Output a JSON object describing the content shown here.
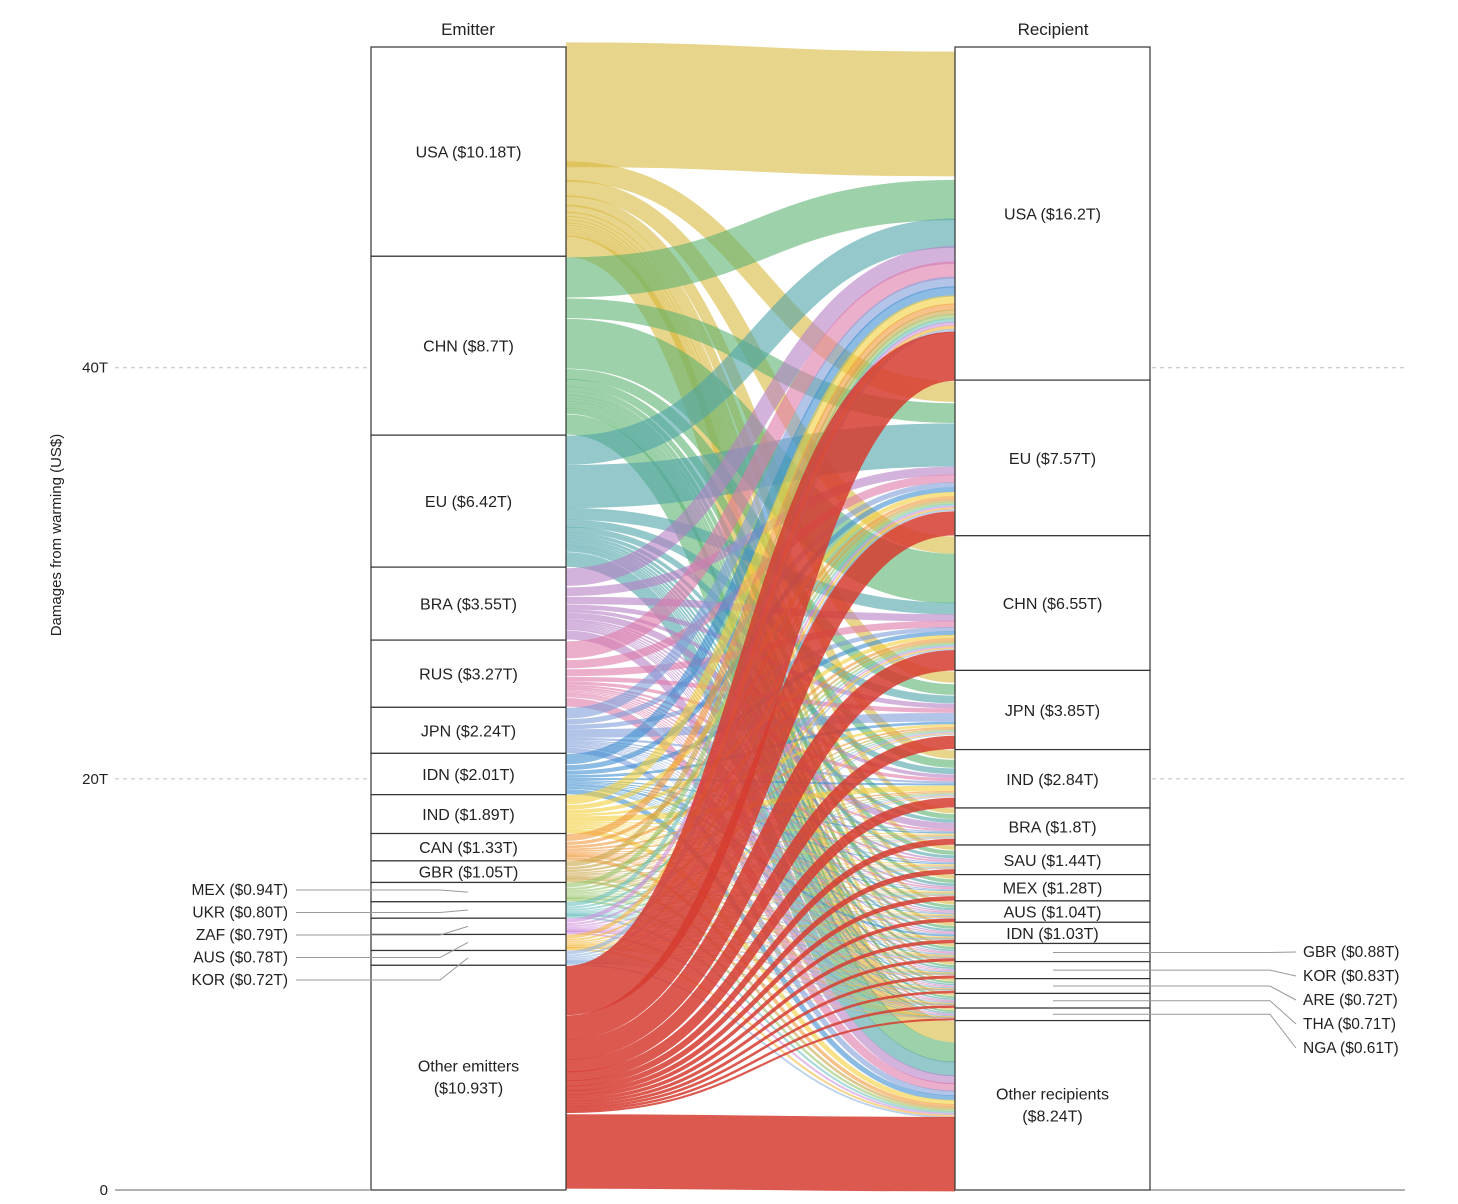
{
  "chart_data": {
    "type": "sankey",
    "title": "",
    "ylabel": "Damages from warming (US$)",
    "ylim": [
      0,
      56
    ],
    "yticks": [
      0,
      20,
      40
    ],
    "ytick_labels": [
      "0",
      "20T",
      "40T"
    ],
    "gridlines": "dashed at 20T and 40T",
    "columns": {
      "left": "Emitter",
      "right": "Recipient"
    },
    "emitters": [
      {
        "code": "USA",
        "value": 10.18,
        "label": "USA ($10.18T)",
        "color": "#d9b940"
      },
      {
        "code": "CHN",
        "value": 8.7,
        "label": "CHN ($8.7T)",
        "color": "#5cb370"
      },
      {
        "code": "EU",
        "value": 6.42,
        "label": "EU ($6.42T)",
        "color": "#4fa3a8"
      },
      {
        "code": "BRA",
        "value": 3.55,
        "label": "BRA ($3.55T)",
        "color": "#b67fc4"
      },
      {
        "code": "RUS",
        "value": 3.27,
        "label": "RUS ($3.27T)",
        "color": "#e07aa8"
      },
      {
        "code": "JPN",
        "value": 2.24,
        "label": "JPN ($2.24T)",
        "color": "#7f9ed8"
      },
      {
        "code": "IDN",
        "value": 2.01,
        "label": "IDN ($2.01T)",
        "color": "#3f8fd0"
      },
      {
        "code": "IND",
        "value": 1.89,
        "label": "IND ($1.89T)",
        "color": "#f2cf3b"
      },
      {
        "code": "CAN",
        "value": 1.33,
        "label": "CAN ($1.33T)",
        "color": "#f29a3a"
      },
      {
        "code": "GBR",
        "value": 1.05,
        "label": "GBR ($1.05T)",
        "color": "#c9a64a"
      },
      {
        "code": "MEX",
        "value": 0.94,
        "label": "MEX ($0.94T)",
        "color": "#97c46a"
      },
      {
        "code": "UKR",
        "value": 0.8,
        "label": "UKR ($0.80T)",
        "color": "#6cc2bf"
      },
      {
        "code": "ZAF",
        "value": 0.79,
        "label": "ZAF ($0.79T)",
        "color": "#cf8fdc"
      },
      {
        "code": "AUS",
        "value": 0.78,
        "label": "AUS ($0.78T)",
        "color": "#f3b73b"
      },
      {
        "code": "KOR",
        "value": 0.72,
        "label": "KOR ($0.72T)",
        "color": "#8fb2e0"
      },
      {
        "code": "OTHER",
        "value": 10.93,
        "label": "Other emitters ($10.93T)",
        "label_lines": [
          "Other emitters",
          "($10.93T)"
        ],
        "color": "#d63c30"
      }
    ],
    "recipients": [
      {
        "code": "USA",
        "value": 16.2,
        "label": "USA ($16.2T)"
      },
      {
        "code": "EU",
        "value": 7.57,
        "label": "EU ($7.57T)"
      },
      {
        "code": "CHN",
        "value": 6.55,
        "label": "CHN ($6.55T)"
      },
      {
        "code": "JPN",
        "value": 3.85,
        "label": "JPN ($3.85T)"
      },
      {
        "code": "IND",
        "value": 2.84,
        "label": "IND ($2.84T)"
      },
      {
        "code": "BRA",
        "value": 1.8,
        "label": "BRA ($1.8T)"
      },
      {
        "code": "SAU",
        "value": 1.44,
        "label": "SAU ($1.44T)"
      },
      {
        "code": "MEX",
        "value": 1.28,
        "label": "MEX ($1.28T)"
      },
      {
        "code": "AUS",
        "value": 1.04,
        "label": "AUS ($1.04T)"
      },
      {
        "code": "IDN",
        "value": 1.03,
        "label": "IDN ($1.03T)"
      },
      {
        "code": "GBR",
        "value": 0.88,
        "label": "GBR ($0.88T)"
      },
      {
        "code": "KOR",
        "value": 0.83,
        "label": "KOR ($0.83T)"
      },
      {
        "code": "ARE",
        "value": 0.72,
        "label": "ARE ($0.72T)"
      },
      {
        "code": "THA",
        "value": 0.71,
        "label": "THA ($0.71T)"
      },
      {
        "code": "NGA",
        "value": 0.61,
        "label": "NGA ($0.61T)"
      },
      {
        "code": "OTHER",
        "value": 8.24,
        "label": "Other recipients ($8.24T)",
        "label_lines": [
          "Other recipients",
          "($8.24T)"
        ]
      }
    ]
  }
}
